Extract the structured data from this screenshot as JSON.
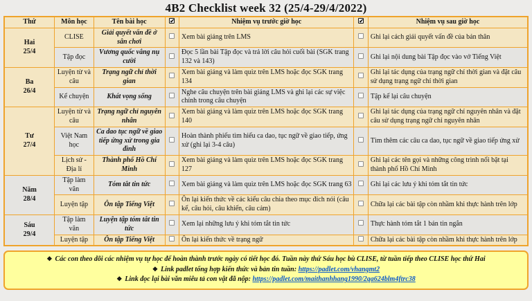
{
  "title": "4B2 Checklist week 32 (25/4-29/4/2022)",
  "colors": {
    "border": "#efa32b",
    "row_beige": "#f4e6c3",
    "row_gray": "#e5e4e1",
    "footer_yellow": "#ffff9e",
    "link_blue": "#0a58c8",
    "page_bg": "#edecea"
  },
  "icons": {
    "header_checkbox": "checked-checkbox-icon",
    "row_checkbox": "empty-checkbox-icon",
    "footer_bullet": "diamond-bullet-icon"
  },
  "table": {
    "headers": {
      "day": "Thứ",
      "subject": "Môn học",
      "lesson": "Tên bài học",
      "before": "Nhiệm vụ trước giờ học",
      "after": "Nhiệm vụ sau giờ học"
    },
    "days": [
      {
        "label": "Hai",
        "date": "25/4",
        "rows": [
          {
            "subject": "CLISE",
            "lesson": "Giải quyết vấn đề ở sân chơi",
            "before": "Xem bài giảng trên LMS",
            "after": "Ghi lại cách giải quyết vấn đề của bản thân"
          },
          {
            "subject": "Tập đọc",
            "lesson": "Vương quốc vắng nụ cười",
            "before": "Đọc 5 lần bài Tập đọc và trả lời câu hỏi cuối bài (SGK trang 132 và 143)",
            "after": "Ghi lại nội dung bài Tập đọc vào vở Tiếng Việt"
          }
        ]
      },
      {
        "label": "Ba",
        "date": "26/4",
        "rows": [
          {
            "subject": "Luyện từ và câu",
            "lesson": "Trạng ngữ chỉ thời gian",
            "before": "Xem bài giảng và làm quiz trên LMS hoặc đọc SGK trang 134",
            "after": "Ghi lại tác dụng của trạng ngữ chỉ thời gian và đặt câu sử dụng trạng ngữ chỉ thời gian"
          },
          {
            "subject": "Kể chuyện",
            "lesson": "Khát vọng sống",
            "before": "Nghe câu chuyện trên bài giảng LMS và ghi lại các sự việc chính trong câu chuyện",
            "after": "Tập kể lại câu chuyện"
          }
        ]
      },
      {
        "label": "Tư",
        "date": "27/4",
        "rows": [
          {
            "subject": "Luyện từ và câu",
            "lesson": "Trạng ngữ chỉ nguyên nhân",
            "before": "Xem bài giảng và làm quiz trên LMS hoặc đọc SGK trang 140",
            "after": "Ghi lại tác dụng của trạng ngữ chỉ nguyên nhân và đặt câu sử dụng trạng ngữ chỉ nguyên nhân"
          },
          {
            "subject": "Việt Nam học",
            "lesson": "Ca dao tục ngữ về giao tiếp ứng xử trong gia đình",
            "before": "Hoàn thành phiếu tìm hiểu ca dao, tục ngữ về giao tiếp, ứng xử (ghi lại 3-4 câu)",
            "after": "Tìm thêm các câu ca dao, tục ngữ về giao tiếp ứng xử"
          },
          {
            "subject": "Lịch sử - Địa lí",
            "lesson": "Thành phố Hồ Chí Minh",
            "before": "Xem bài giảng và làm quiz trên LMS hoặc đọc SGK trang 127",
            "after": "Ghi lại các tên gọi và những công trình nổi bật tại thành phố Hồ Chí Minh"
          }
        ]
      },
      {
        "label": "Năm",
        "date": "28/4",
        "rows": [
          {
            "subject": "Tập làm văn",
            "lesson": "Tóm tắt tin tức",
            "before": "Xem bài giảng và làm quiz trên LMS hoặc đọc SGK trang 63",
            "after": "Ghi lại các lưu ý khi tóm tắt tin tức"
          },
          {
            "subject": "Luyện tập",
            "lesson": "Ôn tập Tiếng Việt",
            "before": "Ôn lại kiến thức về các kiểu câu chia theo mục đích nói (câu kể, câu hỏi, câu khiến, câu cảm)",
            "after": "Chữa lại các bài tập còn nhầm khi thực hành trên lớp"
          }
        ]
      },
      {
        "label": "Sáu",
        "date": "29/4",
        "rows": [
          {
            "subject": "Tập làm văn",
            "lesson": "Luyện tập tóm tắt tin tức",
            "before": "Xem lại những lưu ý khi tóm tắt tin tức",
            "after": "Thực hành tóm tắt 1 bản tin ngắn"
          },
          {
            "subject": "Luyện tập",
            "lesson": "Ôn tập Tiếng Việt",
            "before": "Ôn lại kiến thức về trạng ngữ",
            "after": "Chữa lại các bài tập còn nhầm khi thực hành trên lớp"
          }
        ]
      }
    ]
  },
  "footer": {
    "bullet": "❖",
    "note": "Các con theo dõi các nhiệm vụ tự học để hoàn thành trước ngày có tiết học đó. Tuần này thứ Sáu học bù CLISE, từ tuần tiếp theo CLISE học thứ Hai",
    "links": [
      {
        "label": "Link padlet tổng hợp kiến thức và bản tin tuần:",
        "url": "https://padlet.com/vhangmt2"
      },
      {
        "label": "Link đọc lại bài văn miêu tả con vật đã nộp:",
        "url": "https://padlet.com/maithanhhang1990/2qa624blm4ftrc38"
      }
    ]
  }
}
